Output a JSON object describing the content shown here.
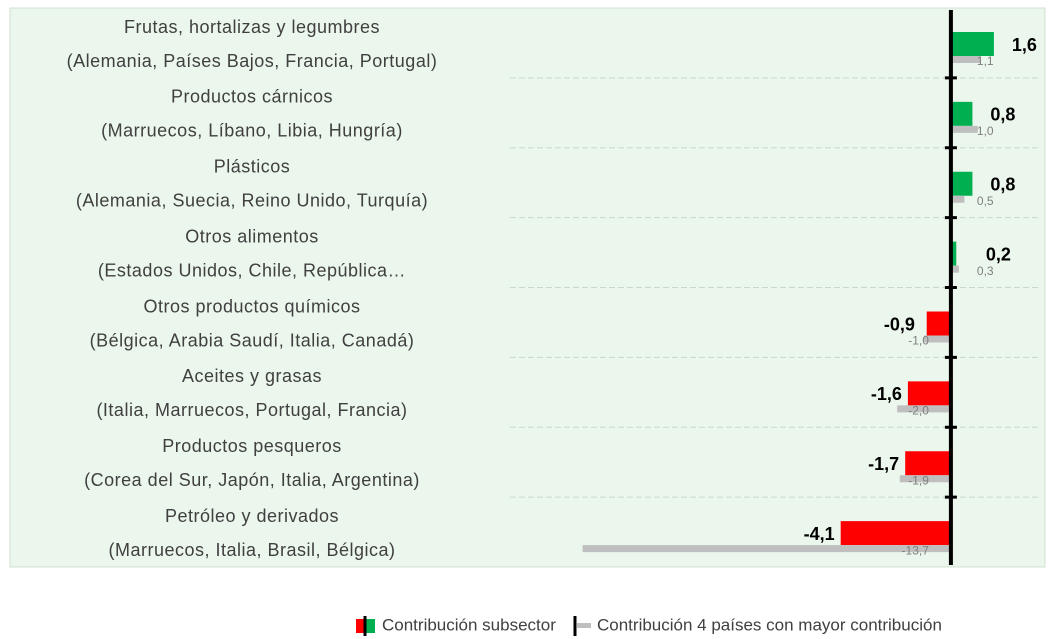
{
  "chart_data": {
    "type": "bar",
    "orientation": "horizontal",
    "categories": [
      [
        "Frutas, hortalizas y legumbres",
        "(Alemania, Países Bajos, Francia, Portugal)"
      ],
      [
        "Productos cárnicos",
        "(Marruecos, Líbano, Libia, Hungría)"
      ],
      [
        "Plásticos",
        "(Alemania, Suecia, Reino Unido, Turquía)"
      ],
      [
        "Otros alimentos",
        "(Estados Unidos, Chile, República…"
      ],
      [
        "Otros productos químicos",
        "(Bélgica, Arabia Saudí, Italia, Canadá)"
      ],
      [
        "Aceites y grasas",
        "(Italia, Marruecos, Portugal, Francia)"
      ],
      [
        "Productos pesqueros",
        "(Corea del Sur, Japón, Italia, Argentina)"
      ],
      [
        "Petróleo y derivados",
        "(Marruecos, Italia, Brasil, Bélgica)"
      ]
    ],
    "series": [
      {
        "name": "Contribución subsector",
        "color": "#00b050",
        "negative_color": "#ff0000",
        "values": [
          1.6,
          0.8,
          0.8,
          0.2,
          -0.9,
          -1.6,
          -1.7,
          -4.1
        ],
        "value_labels": [
          "1,6",
          "0,8",
          "0,8",
          "0,2",
          "-0,9",
          "-1,6",
          "-1,7",
          "-4,1"
        ]
      },
      {
        "name": "Contribución 4 países con mayor contribución",
        "color": "#bfbfbf",
        "values": [
          1.1,
          1.0,
          0.5,
          0.3,
          -1.0,
          -2.0,
          -1.9,
          -13.7
        ],
        "value_labels": [
          "1,1",
          "1,0",
          "0,5",
          "0,3",
          "-1,0",
          "-2,0",
          "-1,9",
          "-13,7"
        ]
      }
    ],
    "xlim": [
      -35,
      3.5
    ],
    "legend": "bottom"
  }
}
